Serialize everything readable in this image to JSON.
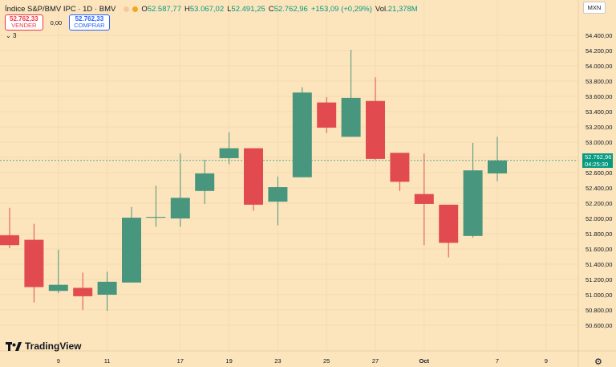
{
  "header": {
    "symbol": "Índice S&P/BMV IPC · 1D · BMV",
    "status_colors": [
      "#f7c8a0",
      "#f5a623"
    ],
    "ohlc": [
      {
        "label": "O",
        "value": "52.587,77"
      },
      {
        "label": "H",
        "value": "53.067,02"
      },
      {
        "label": "L",
        "value": "52.491,25"
      },
      {
        "label": "C",
        "value": "52.762,96"
      },
      {
        "label": "",
        "value": "+153,09 (+0,29%)"
      },
      {
        "label": "Vol.",
        "value": "21,378M"
      }
    ]
  },
  "trade": {
    "sell_price": "52.762,33",
    "sell_label": "VENDER",
    "spread": "0,00",
    "buy_price": "52.762,33",
    "buy_label": "COMPRAR"
  },
  "indicators_toggle": "3",
  "currency": "MXN",
  "brand": "TradingView",
  "last_price": {
    "value": "52.762,96",
    "countdown": "04:25:30",
    "color": "#089981"
  },
  "chart_data": {
    "type": "candlestick",
    "colors": {
      "up": "#47967d",
      "down": "#e14b50"
    },
    "y_range": [
      50400,
      54600
    ],
    "y_ticks": [
      {
        "value": 50600,
        "label": "50.600,00"
      },
      {
        "value": 50800,
        "label": "50.800,00"
      },
      {
        "value": 51000,
        "label": "51.000,00"
      },
      {
        "value": 51200,
        "label": "51.200,00"
      },
      {
        "value": 51400,
        "label": "51.400,00"
      },
      {
        "value": 51600,
        "label": "51.600,00"
      },
      {
        "value": 51800,
        "label": "51.800,00"
      },
      {
        "value": 52000,
        "label": "52.000,00"
      },
      {
        "value": 52200,
        "label": "52.200,00"
      },
      {
        "value": 52400,
        "label": "52.400,00"
      },
      {
        "value": 52600,
        "label": "52.600,00"
      },
      {
        "value": 52800,
        "label": "52.800,00"
      },
      {
        "value": 53000,
        "label": "53.000,00"
      },
      {
        "value": 53200,
        "label": "53.200,00"
      },
      {
        "value": 53400,
        "label": "53.400,00"
      },
      {
        "value": 53600,
        "label": "53.600,00"
      },
      {
        "value": 53800,
        "label": "53.800,00"
      },
      {
        "value": 54000,
        "label": "54.000,00"
      },
      {
        "value": 54200,
        "label": "54.200,00"
      },
      {
        "value": 54400,
        "label": "54.400,00"
      }
    ],
    "x_ticks": [
      {
        "index": 2,
        "label": "9"
      },
      {
        "index": 4,
        "label": "11"
      },
      {
        "index": 7,
        "label": "17"
      },
      {
        "index": 9,
        "label": "19"
      },
      {
        "index": 11,
        "label": "23"
      },
      {
        "index": 13,
        "label": "25"
      },
      {
        "index": 15,
        "label": "27"
      },
      {
        "index": 17,
        "label": "Oct"
      },
      {
        "index": 20,
        "label": "7"
      },
      {
        "index": 22,
        "label": "9"
      }
    ],
    "candles": [
      {
        "o": 51780,
        "h": 52140,
        "l": 51610,
        "c": 51650
      },
      {
        "o": 51720,
        "h": 51930,
        "l": 50900,
        "c": 51100
      },
      {
        "o": 51050,
        "h": 51590,
        "l": 51020,
        "c": 51130
      },
      {
        "o": 51090,
        "h": 51290,
        "l": 50800,
        "c": 50980
      },
      {
        "o": 51000,
        "h": 51300,
        "l": 50790,
        "c": 51170
      },
      {
        "o": 51160,
        "h": 52150,
        "l": 51160,
        "c": 52010
      },
      {
        "o": 52010,
        "h": 52430,
        "l": 51890,
        "c": 52020
      },
      {
        "o": 52000,
        "h": 52850,
        "l": 51890,
        "c": 52270
      },
      {
        "o": 52360,
        "h": 52770,
        "l": 52190,
        "c": 52590
      },
      {
        "o": 52790,
        "h": 53130,
        "l": 52710,
        "c": 52920
      },
      {
        "o": 52920,
        "h": 52920,
        "l": 52100,
        "c": 52180
      },
      {
        "o": 52220,
        "h": 52550,
        "l": 51910,
        "c": 52410
      },
      {
        "o": 52540,
        "h": 53720,
        "l": 52540,
        "c": 53650
      },
      {
        "o": 53520,
        "h": 53590,
        "l": 53120,
        "c": 53190
      },
      {
        "o": 53070,
        "h": 54210,
        "l": 53070,
        "c": 53580
      },
      {
        "o": 53540,
        "h": 53850,
        "l": 52770,
        "c": 52780
      },
      {
        "o": 52860,
        "h": 52860,
        "l": 52360,
        "c": 52480
      },
      {
        "o": 52320,
        "h": 52850,
        "l": 51650,
        "c": 52190
      },
      {
        "o": 52180,
        "h": 52180,
        "l": 51490,
        "c": 51680
      },
      {
        "o": 51770,
        "h": 52990,
        "l": 51750,
        "c": 52630
      },
      {
        "o": 52590,
        "h": 53070,
        "l": 52490,
        "c": 52760
      }
    ]
  }
}
